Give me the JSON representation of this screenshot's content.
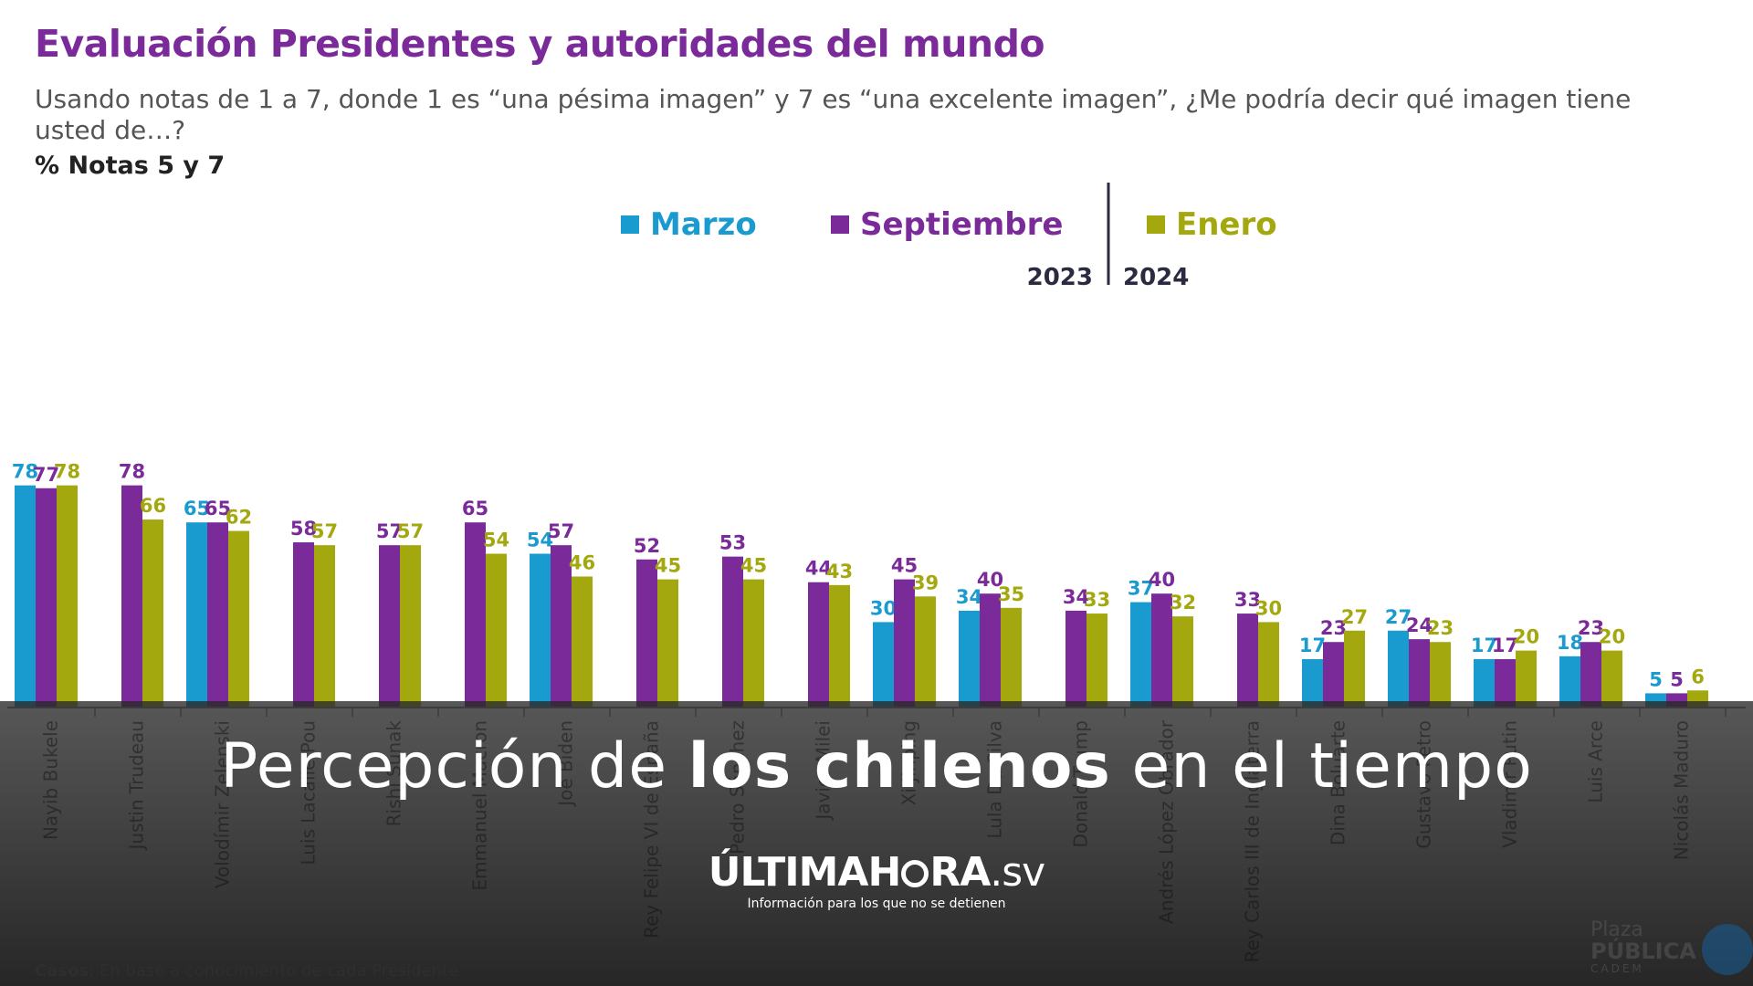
{
  "header": {
    "title": "Evaluación Presidentes y autoridades del mundo",
    "question": "Usando notas de 1 a 7, donde 1 es “una pésima imagen” y 7 es “una excelente imagen”, ¿Me podría decir qué imagen tiene usted de…?",
    "unit_label": "% Notas 5 y 7"
  },
  "legend": {
    "year_left": "2023",
    "year_right": "2024"
  },
  "chart_data": {
    "type": "bar",
    "categories": [
      "Nayib Bukele",
      "Justin Trudeau",
      "Volodímir Zelenski",
      "Luis Lacalle Pou",
      "Rishi Sunak",
      "Emmanuel Macron",
      "Joe Biden",
      "Rey Felipe VI de España",
      "Pedro Sánchez",
      "Javier Milei",
      "Xi Jinping",
      "Lula Da Silva",
      "Donald Trump",
      "Andrés López Obrador",
      "Rey Carlos III de Inglaterra",
      "Dina Boluarte",
      "Gustavo Petro",
      "Vladimir Putin",
      "Luis Arce",
      "Nicolás Maduro"
    ],
    "series": [
      {
        "name": "Marzo",
        "color": "#1a9bd0",
        "values": [
          78,
          null,
          65,
          null,
          null,
          null,
          54,
          null,
          null,
          null,
          30,
          34,
          null,
          37,
          null,
          17,
          27,
          17,
          18,
          5
        ]
      },
      {
        "name": "Septiembre",
        "color": "#7b2a9a",
        "values": [
          77,
          78,
          65,
          58,
          57,
          65,
          57,
          52,
          53,
          44,
          45,
          40,
          34,
          40,
          33,
          23,
          24,
          17,
          23,
          5
        ]
      },
      {
        "name": "Enero",
        "color": "#a3a80e",
        "values": [
          78,
          66,
          62,
          57,
          57,
          54,
          46,
          45,
          45,
          43,
          39,
          35,
          33,
          32,
          30,
          27,
          23,
          20,
          20,
          6
        ]
      }
    ],
    "ylim": [
      0,
      100
    ],
    "grid": false,
    "legend_position": "top-center"
  },
  "overlay": {
    "headline_pre": "Percepción de ",
    "headline_bold": "los chilenos",
    "headline_post": " en el tiempo",
    "brand_part1": "ÚLTIMAH",
    "brand_part2": "RA",
    "brand_suffix": ".sv",
    "tagline": "Información para los que no se detienen"
  },
  "footer": {
    "note_label": "Casos",
    "note_text": ": En base a conocimiento de cada Presidente",
    "source_line1": "Plaza",
    "source_line2": "PÚBLICA",
    "source_line3": "CADEM"
  }
}
